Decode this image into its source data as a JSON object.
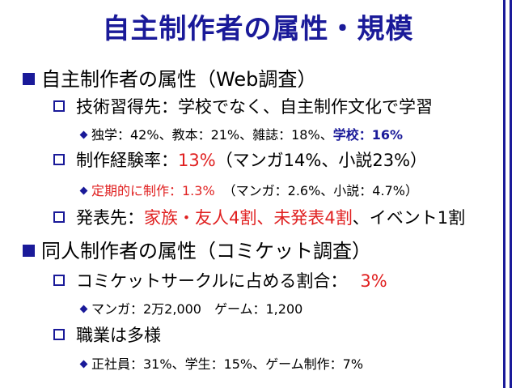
{
  "slide": {
    "title": "自主制作者の属性・規模",
    "sec1": {
      "heading": "自主制作者の属性（Web調査）",
      "p1": "技術習得先：学校でなく、自主制作文化で学習",
      "p1_sub_a": "独学：42%、教本：21%、雑誌：18%、",
      "p1_sub_b": "学校：16%",
      "p2_a": "制作経験率：",
      "p2_b": "13%",
      "p2_c": "（マンガ14%、小説23%）",
      "p2_sub_a": "定期的に制作：1.3%",
      "p2_sub_b": "（マンガ：2.6%、小説：4.7%）",
      "p3_a": "発表先：",
      "p3_b": "家族・友人4割、未発表4割",
      "p3_c": "、イベント1割"
    },
    "sec2": {
      "heading": "同人制作者の属性（コミケット調査）",
      "p1_a": "コミケットサークルに占める割合：",
      "p1_b": "3%",
      "p1_sub": "マンガ：2万2,000　ゲーム：1,200",
      "p2": "職業は多様",
      "p2_sub": "正社員：31%、学生：15%、ゲーム制作：7%"
    }
  },
  "colors": {
    "accent": "#1a1a99",
    "highlight": "#e02020"
  },
  "icons": {
    "level1": "filled-square-bullet",
    "level2": "hollow-square-bullet",
    "level3": "diamond-bullet"
  }
}
